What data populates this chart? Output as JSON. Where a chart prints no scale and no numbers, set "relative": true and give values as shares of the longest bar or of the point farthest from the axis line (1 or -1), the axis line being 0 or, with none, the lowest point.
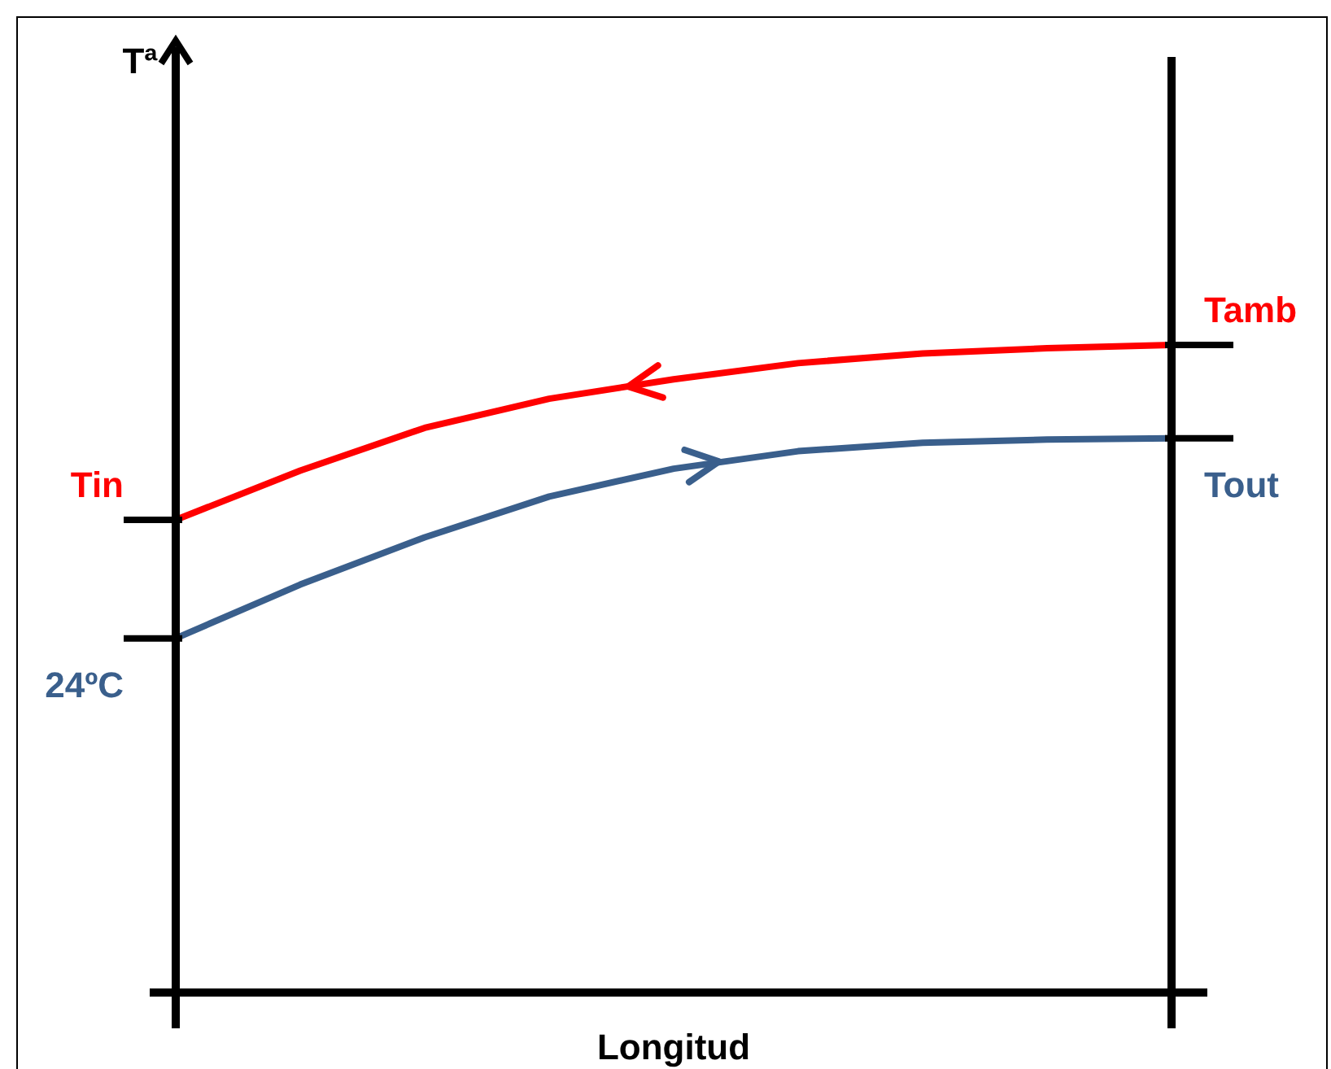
{
  "chart_data": {
    "type": "line",
    "relative": true,
    "xlabel": "Longitud",
    "legend": false,
    "marker": "none",
    "line_style": "solid",
    "categories": [
      null,
      null,
      null,
      null,
      null,
      null,
      null,
      null,
      null
    ],
    "series": [
      {
        "color": "#ff0000",
        "values": [
          0.73,
          0.806,
          0.872,
          0.917,
          0.947,
          0.972,
          0.987,
          0.995,
          1
        ]
      },
      {
        "color": "#3a5f8c",
        "values": [
          0.547,
          0.63,
          0.703,
          0.766,
          0.809,
          0.836,
          0.849,
          0.854,
          0.856
        ]
      }
    ],
    "annotations": [
      "Tª",
      "Tamb",
      "Tin",
      "Tout",
      "24ºC"
    ]
  }
}
